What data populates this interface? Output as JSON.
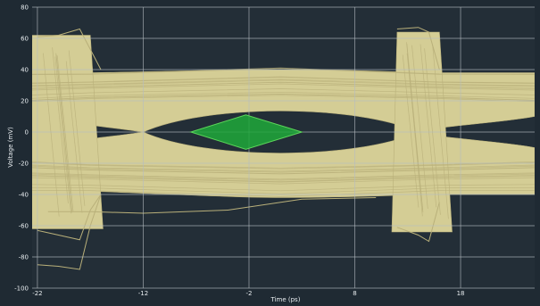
{
  "chart_data": {
    "type": "eye-diagram",
    "xlabel": "Time (ps)",
    "ylabel": "Voltage (mV)",
    "xlim": [
      -22.5,
      25
    ],
    "ylim": [
      -100,
      80
    ],
    "x_ticks": [
      -22,
      -12,
      -2,
      8,
      18
    ],
    "y_ticks": [
      80,
      60,
      40,
      20,
      0,
      -20,
      -40,
      -60,
      -80,
      -100
    ],
    "grid": true,
    "colors": {
      "background": "#232e37",
      "frame": "#1f2a33",
      "grid": "#b5bcc2",
      "trace": "#d4cd95",
      "trace_line": "#b9b07a",
      "mask_fill": "#1fa83a",
      "mask_stroke": "#5cd65a"
    },
    "eye_mask": {
      "points": [
        [
          -7.5,
          0
        ],
        [
          -2.3,
          11
        ],
        [
          3,
          0
        ],
        [
          -2.3,
          -11
        ]
      ]
    },
    "eye_opening": {
      "crossings_x": [
        -12,
        14
      ],
      "upper_rail_mv": [
        20,
        40
      ],
      "lower_rail_mv": [
        -20,
        -40
      ],
      "inner_eye_peak_mv": 18
    },
    "outlier_traces": [
      {
        "points": [
          [
            -22,
            61
          ],
          [
            -20,
            62
          ],
          [
            -18,
            66
          ],
          [
            -16,
            40
          ]
        ]
      },
      {
        "points": [
          [
            -22,
            -85
          ],
          [
            -20,
            -86
          ],
          [
            -18,
            -88
          ],
          [
            -17,
            -60
          ],
          [
            -16,
            -40
          ]
        ]
      },
      {
        "points": [
          [
            -22,
            -63
          ],
          [
            -20,
            -66
          ],
          [
            -18,
            -69
          ],
          [
            -17,
            -50
          ],
          [
            -16,
            -40
          ]
        ]
      },
      {
        "points": [
          [
            -21,
            -51
          ],
          [
            -17,
            -51
          ],
          [
            -12,
            -52
          ],
          [
            -4,
            -50
          ],
          [
            3,
            -43
          ],
          [
            10,
            -42
          ]
        ]
      },
      {
        "points": [
          [
            12,
            66
          ],
          [
            14,
            67
          ],
          [
            15,
            64
          ],
          [
            16,
            40
          ]
        ]
      },
      {
        "points": [
          [
            12,
            -61
          ],
          [
            14,
            -66
          ],
          [
            15,
            -70
          ],
          [
            16,
            -45
          ]
        ]
      }
    ]
  }
}
